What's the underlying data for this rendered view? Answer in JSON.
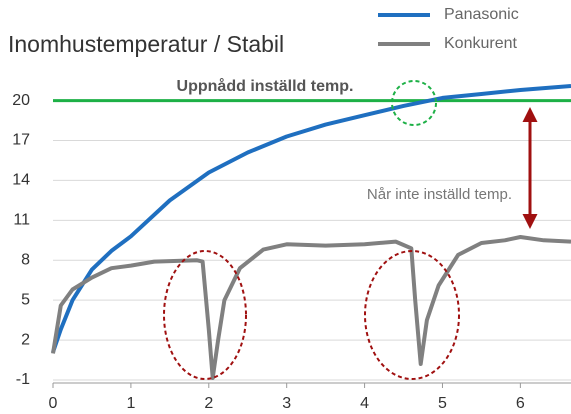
{
  "chart_data": {
    "type": "line",
    "title": "Inomhustemperatur / Stabil",
    "xlim": [
      0,
      6.65
    ],
    "xticks": [
      0,
      1,
      2,
      3,
      4,
      5,
      6
    ],
    "ylim": [
      -1,
      22
    ],
    "yticks": [
      -1,
      2,
      5,
      8,
      11,
      14,
      17,
      20
    ],
    "grid": true,
    "legend": "top-right",
    "target": {
      "value": 20,
      "label": "Uppnådd inställd temp.",
      "color": "#1db046"
    },
    "annotation": "Når inte inställd temp.",
    "series": [
      {
        "name": "Panasonic",
        "color": "#1f6fc0",
        "x": [
          0,
          0.1,
          0.25,
          0.5,
          0.75,
          1,
          1.5,
          2,
          2.5,
          3,
          3.5,
          4,
          4.5,
          5,
          5.5,
          6,
          6.65
        ],
        "values": [
          1.1,
          2.8,
          5,
          7.3,
          8.7,
          9.8,
          12.5,
          14.6,
          16.1,
          17.3,
          18.2,
          18.9,
          19.6,
          20.2,
          20.5,
          20.8,
          21.1
        ]
      },
      {
        "name": "Konkurent",
        "color": "#808080",
        "x": [
          0,
          0.1,
          0.25,
          0.5,
          0.75,
          1,
          1.3,
          1.85,
          1.92,
          2.0,
          2.05,
          2.12,
          2.2,
          2.4,
          2.7,
          3.0,
          3.5,
          4.0,
          4.4,
          4.6,
          4.65,
          4.72,
          4.8,
          4.95,
          5.2,
          5.5,
          5.8,
          6.0,
          6.3,
          6.65
        ],
        "values": [
          1,
          4.6,
          5.8,
          6.7,
          7.4,
          7.6,
          7.9,
          8.0,
          7.9,
          2.8,
          -0.85,
          2,
          5,
          7.4,
          8.8,
          9.2,
          9.1,
          9.2,
          9.4,
          8.9,
          5,
          0.2,
          3.5,
          6.1,
          8.4,
          9.3,
          9.5,
          9.75,
          9.5,
          9.4
        ]
      }
    ]
  }
}
